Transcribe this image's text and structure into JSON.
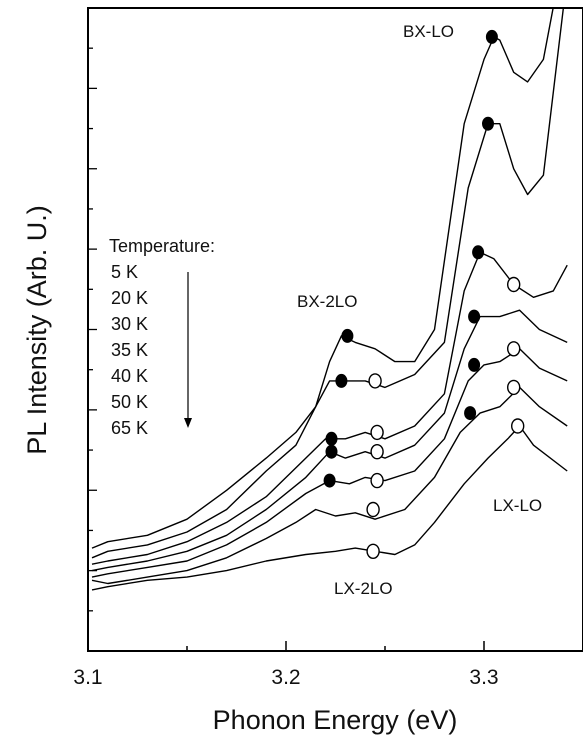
{
  "chart_data": {
    "type": "line",
    "xlabel": "Phonon Energy (eV)",
    "ylabel": "PL Intensity (Arb. U.)",
    "xlim": [
      3.1,
      3.35
    ],
    "ylim": [
      0,
      1
    ],
    "xticks": [
      {
        "value": 3.1,
        "label": "3.1"
      },
      {
        "value": 3.2,
        "label": "3.2"
      },
      {
        "value": 3.3,
        "label": "3.3"
      }
    ],
    "legend": {
      "title": "Temperature:",
      "entries": [
        "5 K",
        "20 K",
        "30 K",
        "35 K",
        "40 K",
        "50 K",
        "65 K"
      ]
    },
    "annotations": [
      {
        "text": "BX-LO",
        "x": 3.295,
        "y": 0.96
      },
      {
        "text": "BX-2LO",
        "x": 3.21,
        "y": 0.555
      },
      {
        "text": "LX-LO",
        "x": 3.33,
        "y": 0.235
      },
      {
        "text": "LX-2LO",
        "x": 3.255,
        "y": 0.075
      }
    ],
    "series": [
      {
        "values": [
          [
            3.102,
            0.16
          ],
          [
            3.11,
            0.17
          ],
          [
            3.13,
            0.18
          ],
          [
            3.15,
            0.205
          ],
          [
            3.17,
            0.25
          ],
          [
            3.19,
            0.3
          ],
          [
            3.205,
            0.34
          ],
          [
            3.215,
            0.38
          ],
          [
            3.222,
            0.45
          ],
          [
            3.228,
            0.49
          ],
          [
            3.235,
            0.48
          ],
          [
            3.245,
            0.47
          ],
          [
            3.255,
            0.45
          ],
          [
            3.265,
            0.45
          ],
          [
            3.275,
            0.5
          ],
          [
            3.29,
            0.82
          ],
          [
            3.3,
            0.92
          ],
          [
            3.305,
            0.955
          ],
          [
            3.308,
            0.95
          ],
          [
            3.315,
            0.9
          ],
          [
            3.322,
            0.885
          ],
          [
            3.33,
            0.92
          ],
          [
            3.338,
            1.05
          ]
        ]
      },
      {
        "values": [
          [
            3.102,
            0.145
          ],
          [
            3.11,
            0.155
          ],
          [
            3.13,
            0.165
          ],
          [
            3.15,
            0.185
          ],
          [
            3.17,
            0.22
          ],
          [
            3.19,
            0.28
          ],
          [
            3.205,
            0.32
          ],
          [
            3.215,
            0.38
          ],
          [
            3.222,
            0.42
          ],
          [
            3.23,
            0.42
          ],
          [
            3.24,
            0.42
          ],
          [
            3.25,
            0.41
          ],
          [
            3.265,
            0.43
          ],
          [
            3.28,
            0.48
          ],
          [
            3.292,
            0.72
          ],
          [
            3.302,
            0.82
          ],
          [
            3.308,
            0.82
          ],
          [
            3.315,
            0.75
          ],
          [
            3.322,
            0.71
          ],
          [
            3.33,
            0.74
          ],
          [
            3.342,
            1.05
          ]
        ]
      },
      {
        "values": [
          [
            3.102,
            0.135
          ],
          [
            3.11,
            0.14
          ],
          [
            3.13,
            0.15
          ],
          [
            3.15,
            0.17
          ],
          [
            3.17,
            0.2
          ],
          [
            3.19,
            0.24
          ],
          [
            3.21,
            0.3
          ],
          [
            3.22,
            0.33
          ],
          [
            3.23,
            0.33
          ],
          [
            3.24,
            0.34
          ],
          [
            3.25,
            0.33
          ],
          [
            3.265,
            0.35
          ],
          [
            3.28,
            0.4
          ],
          [
            3.29,
            0.56
          ],
          [
            3.298,
            0.62
          ],
          [
            3.305,
            0.61
          ],
          [
            3.315,
            0.57
          ],
          [
            3.325,
            0.55
          ],
          [
            3.335,
            0.56
          ],
          [
            3.342,
            0.6
          ]
        ]
      },
      {
        "values": [
          [
            3.102,
            0.125
          ],
          [
            3.11,
            0.13
          ],
          [
            3.13,
            0.14
          ],
          [
            3.15,
            0.155
          ],
          [
            3.17,
            0.18
          ],
          [
            3.19,
            0.22
          ],
          [
            3.21,
            0.27
          ],
          [
            3.222,
            0.31
          ],
          [
            3.23,
            0.3
          ],
          [
            3.24,
            0.31
          ],
          [
            3.25,
            0.3
          ],
          [
            3.265,
            0.32
          ],
          [
            3.28,
            0.37
          ],
          [
            3.29,
            0.47
          ],
          [
            3.298,
            0.52
          ],
          [
            3.308,
            0.52
          ],
          [
            3.318,
            0.53
          ],
          [
            3.328,
            0.5
          ],
          [
            3.342,
            0.48
          ]
        ]
      },
      {
        "values": [
          [
            3.102,
            0.115
          ],
          [
            3.11,
            0.12
          ],
          [
            3.13,
            0.13
          ],
          [
            3.15,
            0.14
          ],
          [
            3.17,
            0.165
          ],
          [
            3.19,
            0.2
          ],
          [
            3.21,
            0.245
          ],
          [
            3.222,
            0.265
          ],
          [
            3.232,
            0.26
          ],
          [
            3.24,
            0.27
          ],
          [
            3.25,
            0.265
          ],
          [
            3.265,
            0.28
          ],
          [
            3.28,
            0.33
          ],
          [
            3.292,
            0.42
          ],
          [
            3.3,
            0.445
          ],
          [
            3.308,
            0.45
          ],
          [
            3.318,
            0.47
          ],
          [
            3.328,
            0.44
          ],
          [
            3.342,
            0.42
          ]
        ]
      },
      {
        "values": [
          [
            3.102,
            0.11
          ],
          [
            3.11,
            0.105
          ],
          [
            3.13,
            0.115
          ],
          [
            3.15,
            0.125
          ],
          [
            3.17,
            0.145
          ],
          [
            3.19,
            0.175
          ],
          [
            3.205,
            0.2
          ],
          [
            3.215,
            0.22
          ],
          [
            3.225,
            0.21
          ],
          [
            3.235,
            0.215
          ],
          [
            3.245,
            0.205
          ],
          [
            3.26,
            0.22
          ],
          [
            3.275,
            0.27
          ],
          [
            3.288,
            0.34
          ],
          [
            3.298,
            0.37
          ],
          [
            3.308,
            0.38
          ],
          [
            3.318,
            0.41
          ],
          [
            3.328,
            0.38
          ],
          [
            3.342,
            0.35
          ]
        ]
      },
      {
        "values": [
          [
            3.102,
            0.095
          ],
          [
            3.11,
            0.1
          ],
          [
            3.13,
            0.11
          ],
          [
            3.15,
            0.115
          ],
          [
            3.17,
            0.125
          ],
          [
            3.19,
            0.14
          ],
          [
            3.21,
            0.15
          ],
          [
            3.225,
            0.155
          ],
          [
            3.235,
            0.16
          ],
          [
            3.245,
            0.155
          ],
          [
            3.255,
            0.15
          ],
          [
            3.265,
            0.165
          ],
          [
            3.275,
            0.2
          ],
          [
            3.29,
            0.26
          ],
          [
            3.302,
            0.3
          ],
          [
            3.312,
            0.33
          ],
          [
            3.318,
            0.35
          ],
          [
            3.325,
            0.32
          ],
          [
            3.342,
            0.28
          ]
        ]
      }
    ],
    "filled_markers": [
      [
        3.304,
        0.955
      ],
      [
        3.302,
        0.82
      ],
      [
        3.297,
        0.62
      ],
      [
        3.295,
        0.52
      ],
      [
        3.295,
        0.445
      ],
      [
        3.293,
        0.37
      ],
      [
        3.231,
        0.49
      ],
      [
        3.228,
        0.42
      ],
      [
        3.223,
        0.33
      ],
      [
        3.223,
        0.31
      ],
      [
        3.222,
        0.265
      ]
    ],
    "open_markers": [
      [
        3.315,
        0.57
      ],
      [
        3.315,
        0.47
      ],
      [
        3.315,
        0.41
      ],
      [
        3.317,
        0.35
      ],
      [
        3.245,
        0.42
      ],
      [
        3.246,
        0.34
      ],
      [
        3.246,
        0.31
      ],
      [
        3.246,
        0.265
      ],
      [
        3.244,
        0.22
      ],
      [
        3.244,
        0.155
      ]
    ]
  }
}
